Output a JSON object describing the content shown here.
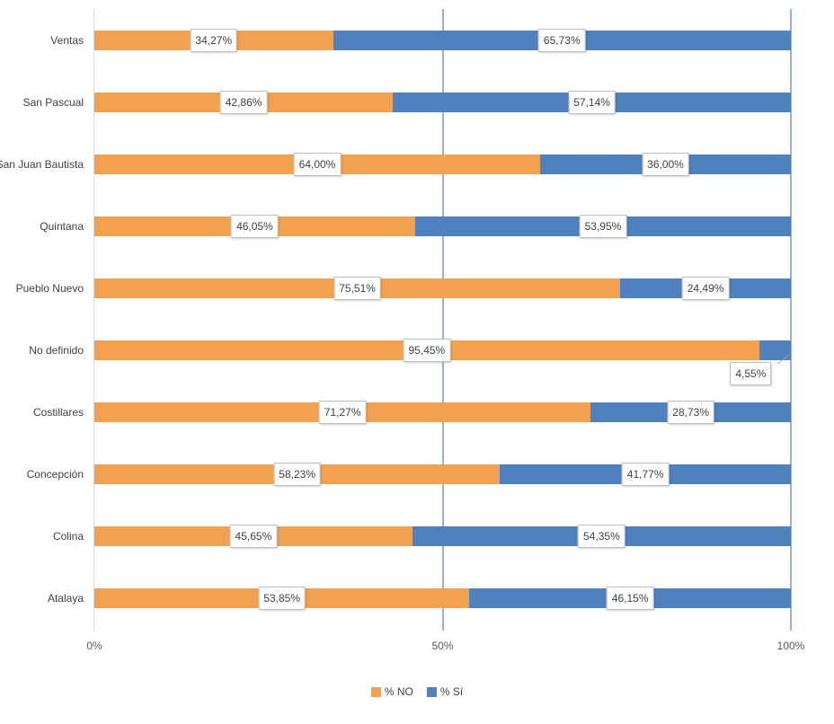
{
  "chart_data": {
    "type": "bar",
    "orientation": "horizontal",
    "stacked": true,
    "title": "",
    "categories": [
      "Ventas",
      "San Pascual",
      "San Juan Bautista",
      "Quintana",
      "Pueblo Nuevo",
      "No definido",
      "Costillares",
      "Concepción",
      "Colina",
      "Atalaya"
    ],
    "series": [
      {
        "name": "% NO",
        "color": "#F1A14F",
        "values": [
          34.27,
          42.86,
          64.0,
          46.05,
          75.51,
          95.45,
          71.27,
          58.23,
          45.65,
          53.85
        ]
      },
      {
        "name": "% Sí",
        "color": "#4E81BD",
        "values": [
          65.73,
          57.14,
          36.0,
          53.95,
          24.49,
          4.55,
          28.73,
          41.77,
          54.35,
          46.15
        ]
      }
    ],
    "value_labels": [
      [
        "34,27%",
        "65,73%"
      ],
      [
        "42,86%",
        "57,14%"
      ],
      [
        "64,00%",
        "36,00%"
      ],
      [
        "46,05%",
        "53,95%"
      ],
      [
        "75,51%",
        "24,49%"
      ],
      [
        "95,45%",
        "4,55%"
      ],
      [
        "71,27%",
        "28,73%"
      ],
      [
        "58,23%",
        "41,77%"
      ],
      [
        "45,65%",
        "54,35%"
      ],
      [
        "53,85%",
        "46,15%"
      ]
    ],
    "x_ticks": [
      "0%",
      "50%",
      "100%"
    ],
    "xlim": [
      0,
      100
    ],
    "grid": "vertical gridlines at 0%, 50%, 100%",
    "legend": {
      "position": "bottom",
      "items": [
        "% NO",
        "% Sí"
      ]
    }
  },
  "colors": {
    "series_no": "#F1A14F",
    "series_si": "#4E81BD",
    "gridline_blue": "#95B3D7",
    "axis_line_gray": "#D9D9D9",
    "label_box_border": "#BFBFBF",
    "label_text": "#404040",
    "leader_line": "#A6A6A6"
  }
}
